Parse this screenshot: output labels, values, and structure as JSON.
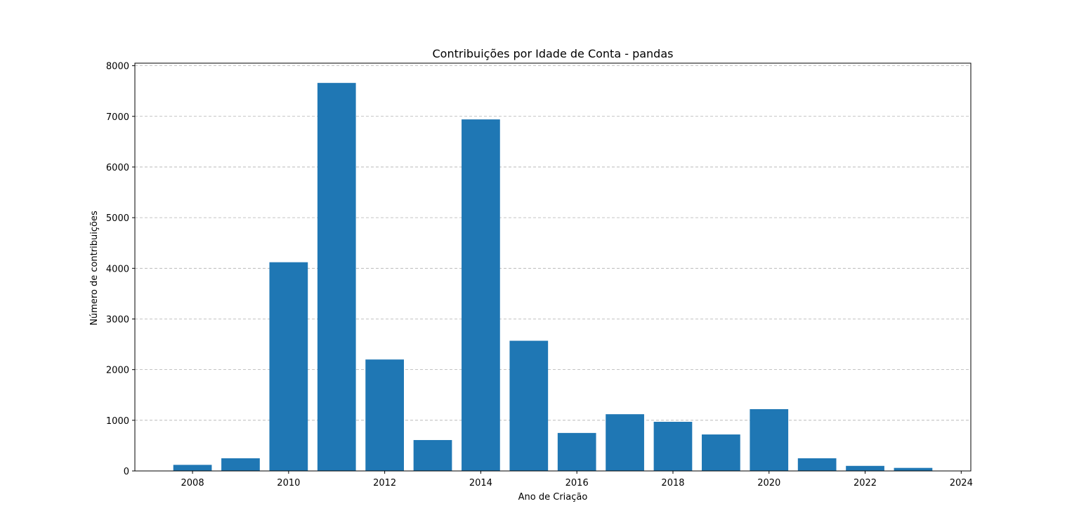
{
  "chart_data": {
    "type": "bar",
    "title": "Contribuições por Idade de Conta - pandas",
    "xlabel": "Ano de Criação",
    "ylabel": "Número de contribuições",
    "categories": [
      2008,
      2009,
      2010,
      2011,
      2012,
      2013,
      2014,
      2015,
      2016,
      2017,
      2018,
      2019,
      2020,
      2021,
      2022,
      2023
    ],
    "values": [
      120,
      250,
      4120,
      7660,
      2200,
      610,
      6940,
      2570,
      750,
      1120,
      970,
      720,
      1220,
      250,
      100,
      60
    ],
    "xlim": [
      2006.8,
      2024.2
    ],
    "ylim": [
      0,
      8050
    ],
    "xticks": [
      2008,
      2010,
      2012,
      2014,
      2016,
      2018,
      2020,
      2022,
      2024
    ],
    "yticks": [
      0,
      1000,
      2000,
      3000,
      4000,
      5000,
      6000,
      7000,
      8000
    ],
    "grid": "y-dashed",
    "legend": "none",
    "bar_color": "#1f77b4",
    "grid_color": "#b0b0b0"
  }
}
